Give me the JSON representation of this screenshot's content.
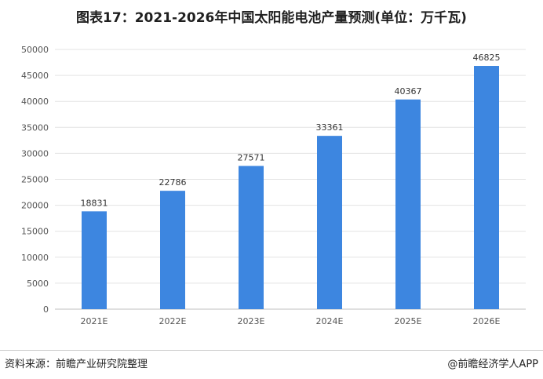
{
  "title": "图表17：2021-2026年中国太阳能电池产量预测(单位：万千瓦)",
  "source": "资料来源：前瞻产业研究院整理",
  "brand": "@前瞻经济学人APP",
  "colors": {
    "bar": "#3d86e0",
    "grid": "#e3e3e3",
    "axis": "#bfbfbf"
  },
  "chart_data": {
    "type": "bar",
    "title": "图表17：2021-2026年中国太阳能电池产量预测(单位：万千瓦)",
    "categories": [
      "2021E",
      "2022E",
      "2023E",
      "2024E",
      "2025E",
      "2026E"
    ],
    "values": [
      18831,
      22786,
      27571,
      33361,
      40367,
      46825
    ],
    "y_ticks": [
      "0",
      "5000",
      "10000",
      "15000",
      "20000",
      "25000",
      "30000",
      "35000",
      "40000",
      "45000",
      "50000"
    ],
    "ylim": [
      0,
      50000
    ],
    "xlabel": "",
    "ylabel": "",
    "grid": true,
    "data_labels": true
  }
}
